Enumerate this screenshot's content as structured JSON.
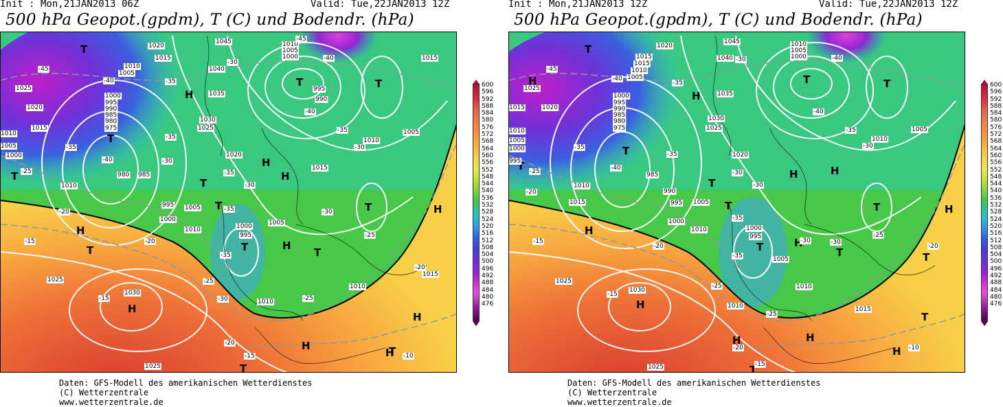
{
  "panels": [
    {
      "init": "Init : Mon,21JAN2013 06Z",
      "valid": "Valid: Tue,22JAN2013 12Z",
      "title": "500 hPa Geopot.(gpdm), T (C) und Bodendr. (hPa)",
      "pressure_labels": [
        "1020",
        "1015",
        "1045",
        "1010",
        "1005",
        "1000",
        "1015",
        "1025",
        "1010",
        "1005",
        "1040",
        "1035",
        "1000",
        "995",
        "990",
        "985",
        "980",
        "975",
        "1030",
        "1025",
        "1020",
        "1010",
        "1005",
        "1000",
        "995",
        "990",
        "985",
        "980",
        "1015",
        "1010",
        "1005",
        "1010",
        "1000",
        "995",
        "1010",
        "1005",
        "1020",
        "1015",
        "1025",
        "1030",
        "1000",
        "995",
        "1005",
        "1010",
        "1025",
        "1010",
        "1015"
      ],
      "temp_labels": [
        "-45",
        "-40",
        "-35",
        "-30",
        "-40",
        "-45",
        "-35",
        "-30",
        "-35",
        "-40",
        "-35",
        "-30",
        "-35",
        "-25",
        "-20",
        "-15",
        "-20",
        "-25",
        "-30",
        "-35",
        "-30",
        "-25",
        "-20",
        "-15",
        "-15",
        "-20",
        "-25",
        "-10",
        "-30",
        "-35",
        "-40"
      ],
      "centers": [
        "T",
        "T",
        "H",
        "T",
        "T",
        "T",
        "H",
        "H",
        "T",
        "T",
        "H",
        "T",
        "T",
        "H",
        "H",
        "T",
        "H",
        "T",
        "T",
        "T",
        "H",
        "H",
        "H"
      ]
    },
    {
      "init": "Init : Mon,21JAN2013 12Z",
      "valid": "Valid: Tue,22JAN2013 12Z",
      "title": "500 hPa Geopot.(gpdm), T (C) und Bodendr. (hPa)",
      "pressure_labels": [
        "1025",
        "1020",
        "1015",
        "1045",
        "1010",
        "1005",
        "1000",
        "1015",
        "1010",
        "1005",
        "1040",
        "1035",
        "1000",
        "995",
        "990",
        "985",
        "980",
        "975",
        "1030",
        "1025",
        "1020",
        "1015",
        "1010",
        "1005",
        "1000",
        "995",
        "990",
        "985",
        "1015",
        "1010",
        "1005",
        "1010",
        "1000",
        "995",
        "1010",
        "1005",
        "1020",
        "1025",
        "1030",
        "1000",
        "995",
        "1005",
        "1010",
        "1025",
        "1015",
        "1010"
      ],
      "temp_labels": [
        "-45",
        "-40",
        "-35",
        "-30",
        "-40",
        "-35",
        "-30",
        "-35",
        "-40",
        "-35",
        "-30",
        "-25",
        "-20",
        "-15",
        "-20",
        "-25",
        "-30",
        "-35",
        "-30",
        "-25",
        "-20",
        "-15",
        "-15",
        "-20",
        "-25",
        "-10",
        "-30",
        "-35",
        "-40"
      ],
      "centers": [
        "T",
        "H",
        "T",
        "H",
        "T",
        "T",
        "T",
        "H",
        "H",
        "T",
        "T",
        "H",
        "T",
        "T",
        "H",
        "H",
        "T",
        "H",
        "T",
        "T",
        "H",
        "H",
        "H",
        "T"
      ]
    }
  ],
  "scale": {
    "values": [
      "600",
      "596",
      "592",
      "588",
      "584",
      "580",
      "576",
      "572",
      "568",
      "564",
      "560",
      "556",
      "552",
      "548",
      "544",
      "540",
      "536",
      "532",
      "528",
      "524",
      "520",
      "516",
      "512",
      "508",
      "504",
      "500",
      "496",
      "492",
      "488",
      "484",
      "480",
      "476"
    ],
    "colors": {
      "top": "#b01030",
      "mid": "#40c848",
      "bottom": "#500050"
    }
  },
  "credits": {
    "line1": "Daten: GFS-Modell des amerikanischen Wetterdienstes",
    "line2": "(C) Wetterzentrale",
    "line3": "www.wetterzentrale.de"
  }
}
